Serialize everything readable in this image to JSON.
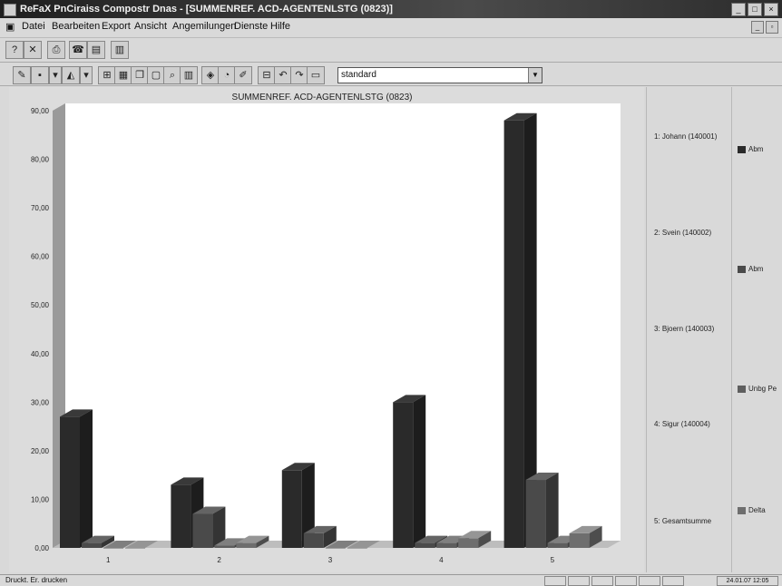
{
  "window": {
    "title": "ReFaX PnCiraiss Compostr Dnas - [SUMMENREF. ACD-AGENTENLSTG (0823)]",
    "buttons": [
      "_",
      "□",
      "×"
    ]
  },
  "menu": {
    "items": [
      "Datei",
      "Bearbeiten",
      "Export",
      "Ansicht",
      "Angemilungen",
      "Dienste",
      "Hilfe"
    ]
  },
  "toolbar": {
    "combo_value": "standard"
  },
  "chart_data": {
    "type": "bar",
    "title": "SUMMENREF. ACD-AGENTENLSTG (0823)",
    "categories": [
      "1",
      "2",
      "3",
      "4",
      "5"
    ],
    "ylim": [
      0,
      90
    ],
    "yticks": [
      "0,00",
      "10,00",
      "20,00",
      "30,00",
      "40,00",
      "50,00",
      "60,00",
      "70,00",
      "80,00",
      "90,00"
    ],
    "series": [
      {
        "name": "Abm",
        "values": [
          27,
          13,
          16,
          30,
          88
        ],
        "color": "#2a2a2a"
      },
      {
        "name": "Abm",
        "values": [
          1,
          7,
          3,
          1,
          14
        ],
        "color": "#4a4a4a"
      },
      {
        "name": "Unbg Pe",
        "values": [
          0,
          0.5,
          0,
          1,
          1
        ],
        "color": "#5e5e5e"
      },
      {
        "name": "Delta",
        "values": [
          0,
          1,
          0,
          2,
          3
        ],
        "color": "#6e6e6e"
      }
    ],
    "grid": false,
    "legend": "right"
  },
  "legend_agents": [
    "1: Johann (140001)",
    "2: Svein (140002)",
    "3: Bjoern (140003)",
    "4: Sigur (140004)",
    "5: Gesamtsumme"
  ],
  "statusbar": {
    "text": "Druckt. Er. drucken",
    "right_text": "24.01.07 12:05"
  }
}
